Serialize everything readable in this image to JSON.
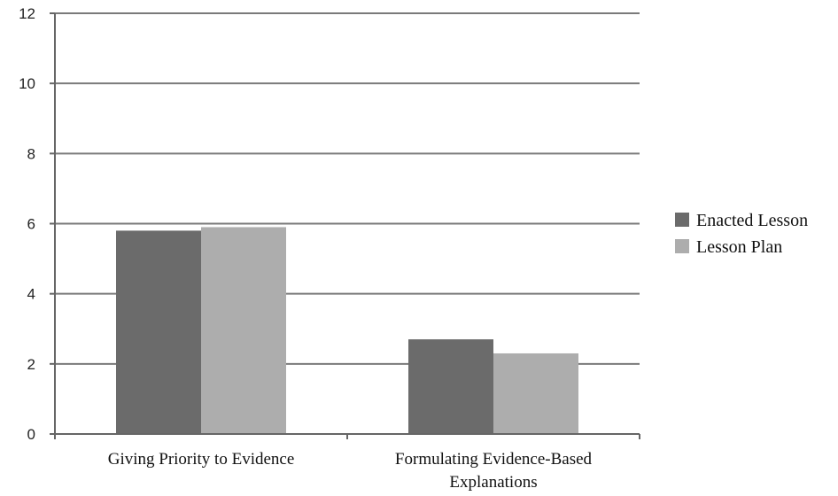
{
  "chart_data": {
    "type": "bar",
    "title": "",
    "xlabel": "",
    "ylabel": "",
    "categories": [
      [
        "Giving Priority to Evidence"
      ],
      [
        "Formulating Evidence-Based",
        "Explanations"
      ]
    ],
    "series": [
      {
        "name": "Enacted Lesson",
        "values": [
          5.8,
          2.7
        ],
        "color": "#6b6b6b"
      },
      {
        "name": "Lesson Plan",
        "values": [
          5.9,
          2.3
        ],
        "color": "#adadad"
      }
    ],
    "ylim": [
      0,
      12
    ],
    "yticks": [
      0,
      2,
      4,
      6,
      8,
      10,
      12
    ],
    "grid": true,
    "legend": "right",
    "grid_color": "#7a7a7a",
    "axis_color": "#666666"
  }
}
